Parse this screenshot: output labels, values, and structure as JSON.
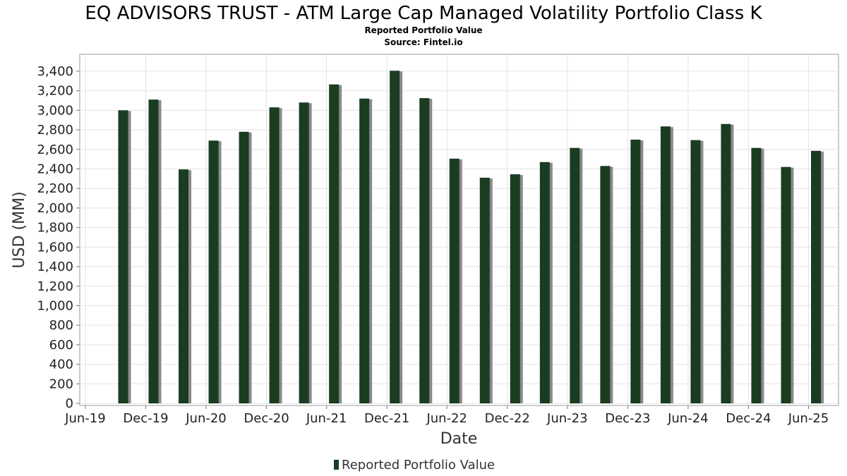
{
  "chart_data": {
    "type": "bar",
    "title": "EQ ADVISORS TRUST - ATM Large Cap Managed Volatility Portfolio Class K",
    "subtitle": "Reported Portfolio Value",
    "source": "Source: Fintel.io",
    "xlabel": "Date",
    "ylabel": "USD (MM)",
    "ylim": [
      0,
      3500
    ],
    "yticks": [
      0,
      200,
      400,
      600,
      800,
      1000,
      1200,
      1400,
      1600,
      1800,
      2000,
      2200,
      2400,
      2600,
      2800,
      3000,
      3200,
      3400
    ],
    "ytick_labels": [
      "0",
      "200",
      "400",
      "600",
      "800",
      "1,000",
      "1,200",
      "1,400",
      "1,600",
      "1,800",
      "2,000",
      "2,200",
      "2,400",
      "2,600",
      "2,800",
      "3,000",
      "3,200",
      "3,400"
    ],
    "xlim": [
      "2019-05-15",
      "2025-08-31"
    ],
    "xticks": [
      {
        "label": "Jun-19",
        "date": "2019-06-01"
      },
      {
        "label": "Dec-19",
        "date": "2019-12-01"
      },
      {
        "label": "Jun-20",
        "date": "2020-06-01"
      },
      {
        "label": "Dec-20",
        "date": "2020-12-01"
      },
      {
        "label": "Jun-21",
        "date": "2021-06-01"
      },
      {
        "label": "Dec-21",
        "date": "2021-12-01"
      },
      {
        "label": "Jun-22",
        "date": "2022-06-01"
      },
      {
        "label": "Dec-22",
        "date": "2022-12-01"
      },
      {
        "label": "Jun-23",
        "date": "2023-06-01"
      },
      {
        "label": "Dec-23",
        "date": "2023-12-01"
      },
      {
        "label": "Jun-24",
        "date": "2024-06-01"
      },
      {
        "label": "Dec-24",
        "date": "2024-12-01"
      },
      {
        "label": "Jun-25",
        "date": "2025-06-01"
      }
    ],
    "series": [
      {
        "name": "Reported Portfolio Value",
        "color": "#1a3d22",
        "points": [
          {
            "date": "2019-09-30",
            "value": 3000
          },
          {
            "date": "2019-12-31",
            "value": 3110
          },
          {
            "date": "2020-03-31",
            "value": 2395
          },
          {
            "date": "2020-06-30",
            "value": 2690
          },
          {
            "date": "2020-09-30",
            "value": 2780
          },
          {
            "date": "2020-12-31",
            "value": 3030
          },
          {
            "date": "2021-03-31",
            "value": 3080
          },
          {
            "date": "2021-06-30",
            "value": 3265
          },
          {
            "date": "2021-09-30",
            "value": 3120
          },
          {
            "date": "2021-12-31",
            "value": 3405
          },
          {
            "date": "2022-03-31",
            "value": 3125
          },
          {
            "date": "2022-06-30",
            "value": 2505
          },
          {
            "date": "2022-09-30",
            "value": 2310
          },
          {
            "date": "2022-12-31",
            "value": 2345
          },
          {
            "date": "2023-03-31",
            "value": 2470
          },
          {
            "date": "2023-06-30",
            "value": 2615
          },
          {
            "date": "2023-09-30",
            "value": 2430
          },
          {
            "date": "2023-12-31",
            "value": 2700
          },
          {
            "date": "2024-03-31",
            "value": 2835
          },
          {
            "date": "2024-06-30",
            "value": 2695
          },
          {
            "date": "2024-09-30",
            "value": 2860
          },
          {
            "date": "2024-12-31",
            "value": 2615
          },
          {
            "date": "2025-03-31",
            "value": 2420
          },
          {
            "date": "2025-06-30",
            "value": 2585
          }
        ]
      }
    ],
    "grid": true,
    "legend_position": "bottom"
  }
}
